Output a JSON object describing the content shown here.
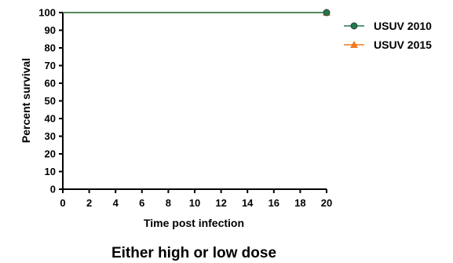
{
  "chart_data": {
    "type": "line",
    "title": "",
    "caption": "Either high or low dose",
    "xlabel": "Time post infection",
    "ylabel": "Percent survival",
    "xlim": [
      0,
      20
    ],
    "ylim": [
      0,
      100
    ],
    "xticks": [
      0,
      2,
      4,
      6,
      8,
      10,
      12,
      14,
      16,
      18,
      20
    ],
    "yticks": [
      0,
      10,
      20,
      30,
      40,
      50,
      60,
      70,
      80,
      90,
      100
    ],
    "grid": false,
    "legend_position": "top-right",
    "series": [
      {
        "name": "USUV 2010",
        "color": "#1e7a4f",
        "marker": "circle",
        "x": [
          0,
          20
        ],
        "y": [
          100,
          100
        ]
      },
      {
        "name": "USUV 2015",
        "color": "#f07a1e",
        "marker": "triangle",
        "x": [
          0,
          20
        ],
        "y": [
          100,
          100
        ]
      }
    ]
  }
}
